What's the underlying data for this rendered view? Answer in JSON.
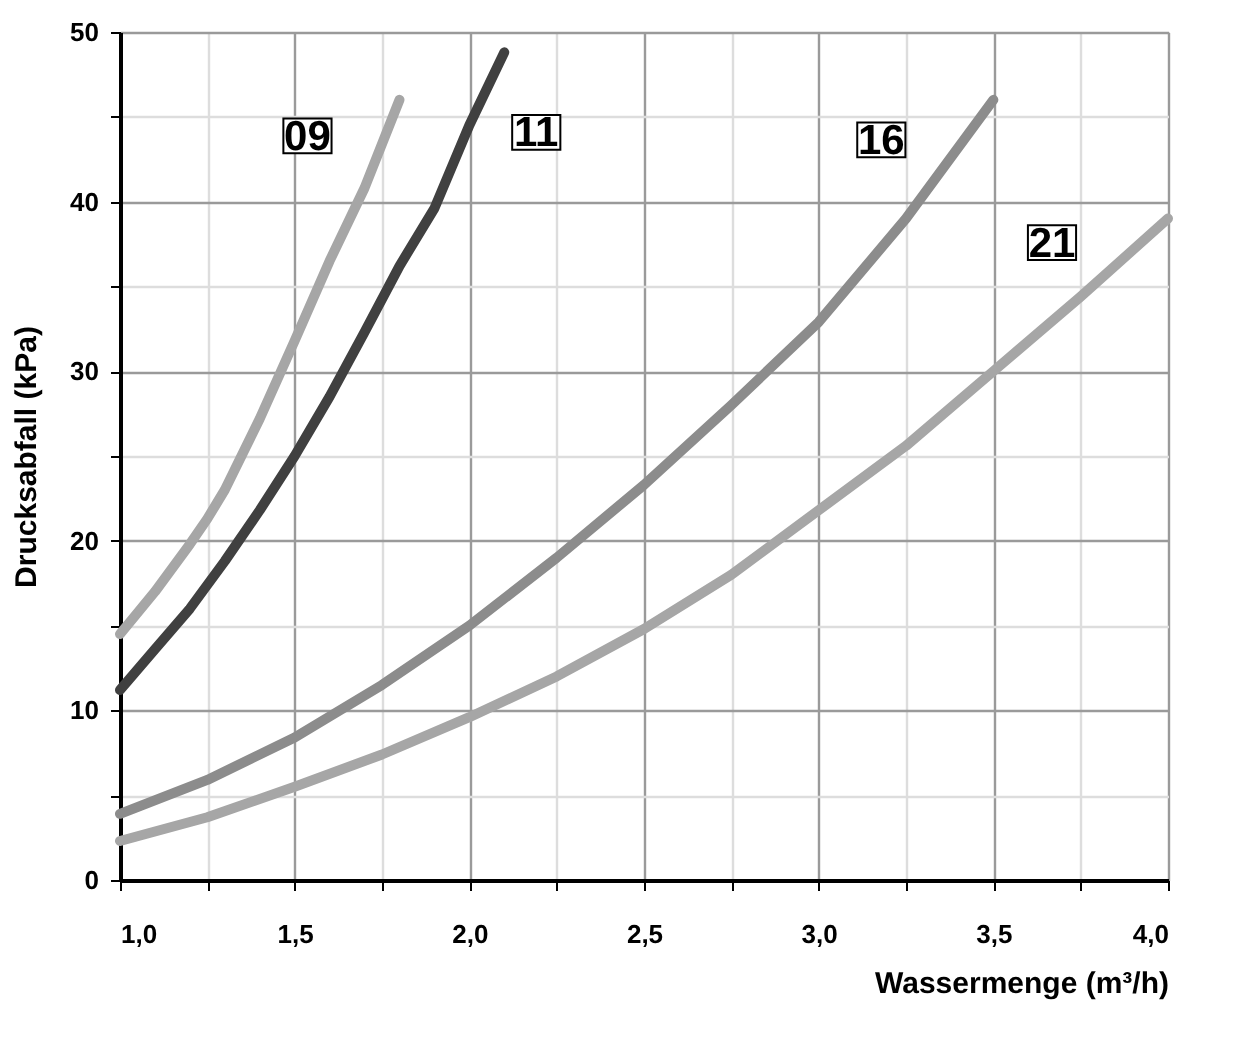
{
  "chart_data": {
    "type": "line",
    "xlabel": "Wassermenge (m³/h)",
    "ylabel": "Drucksabfall (kPa)",
    "xlim": [
      1.0,
      4.0
    ],
    "ylim": [
      0,
      50
    ],
    "xticks": [
      {
        "value": 1.0,
        "label": "1,0"
      },
      {
        "value": 1.25,
        "label": null
      },
      {
        "value": 1.5,
        "label": "1,5"
      },
      {
        "value": 1.75,
        "label": null
      },
      {
        "value": 2.0,
        "label": "2,0"
      },
      {
        "value": 2.25,
        "label": null
      },
      {
        "value": 2.5,
        "label": "2,5"
      },
      {
        "value": 2.75,
        "label": null
      },
      {
        "value": 3.0,
        "label": "3,0"
      },
      {
        "value": 3.25,
        "label": null
      },
      {
        "value": 3.5,
        "label": "3,5"
      },
      {
        "value": 3.75,
        "label": null
      },
      {
        "value": 4.0,
        "label": "4,0"
      }
    ],
    "yticks": [
      0,
      {
        "value": 5,
        "label": null
      },
      10,
      {
        "value": 15,
        "label": null
      },
      20,
      {
        "value": 25,
        "label": null
      },
      30,
      {
        "value": 35,
        "label": null
      },
      40,
      {
        "value": 45,
        "label": null
      },
      50
    ],
    "grid": true,
    "legend": false,
    "marker": "none",
    "line_style": "solid",
    "series": [
      {
        "name": "09",
        "color": "#a6a6a6",
        "x": [
          1.0,
          1.1,
          1.2,
          1.25,
          1.3,
          1.4,
          1.45,
          1.5,
          1.6,
          1.7,
          1.8
        ],
        "values": [
          14.5,
          17.0,
          19.8,
          21.3,
          23.0,
          27.2,
          29.5,
          31.8,
          36.5,
          40.8,
          46.0
        ]
      },
      {
        "name": "11",
        "color": "#404040",
        "x": [
          1.0,
          1.1,
          1.2,
          1.3,
          1.4,
          1.5,
          1.6,
          1.7,
          1.8,
          1.9,
          2.0,
          2.1
        ],
        "values": [
          11.2,
          13.6,
          16.0,
          18.8,
          21.8,
          25.0,
          28.5,
          32.3,
          36.2,
          39.6,
          44.5,
          48.8
        ]
      },
      {
        "name": "16",
        "color": "#8c8c8c",
        "x": [
          1.0,
          1.25,
          1.5,
          1.75,
          2.0,
          2.25,
          2.5,
          2.75,
          3.0,
          3.25,
          3.5
        ],
        "values": [
          3.9,
          5.9,
          8.4,
          11.5,
          15.0,
          19.0,
          23.3,
          28.0,
          32.9,
          39.0,
          46.0
        ]
      },
      {
        "name": "21",
        "color": "#a6a6a6",
        "x": [
          1.0,
          1.25,
          1.5,
          1.75,
          2.0,
          2.25,
          2.5,
          2.75,
          3.0,
          3.25,
          3.5,
          3.75,
          4.0
        ],
        "values": [
          2.3,
          3.7,
          5.5,
          7.4,
          9.6,
          12.0,
          14.8,
          18.0,
          21.8,
          25.6,
          30.0,
          34.4,
          39.0
        ]
      }
    ]
  }
}
